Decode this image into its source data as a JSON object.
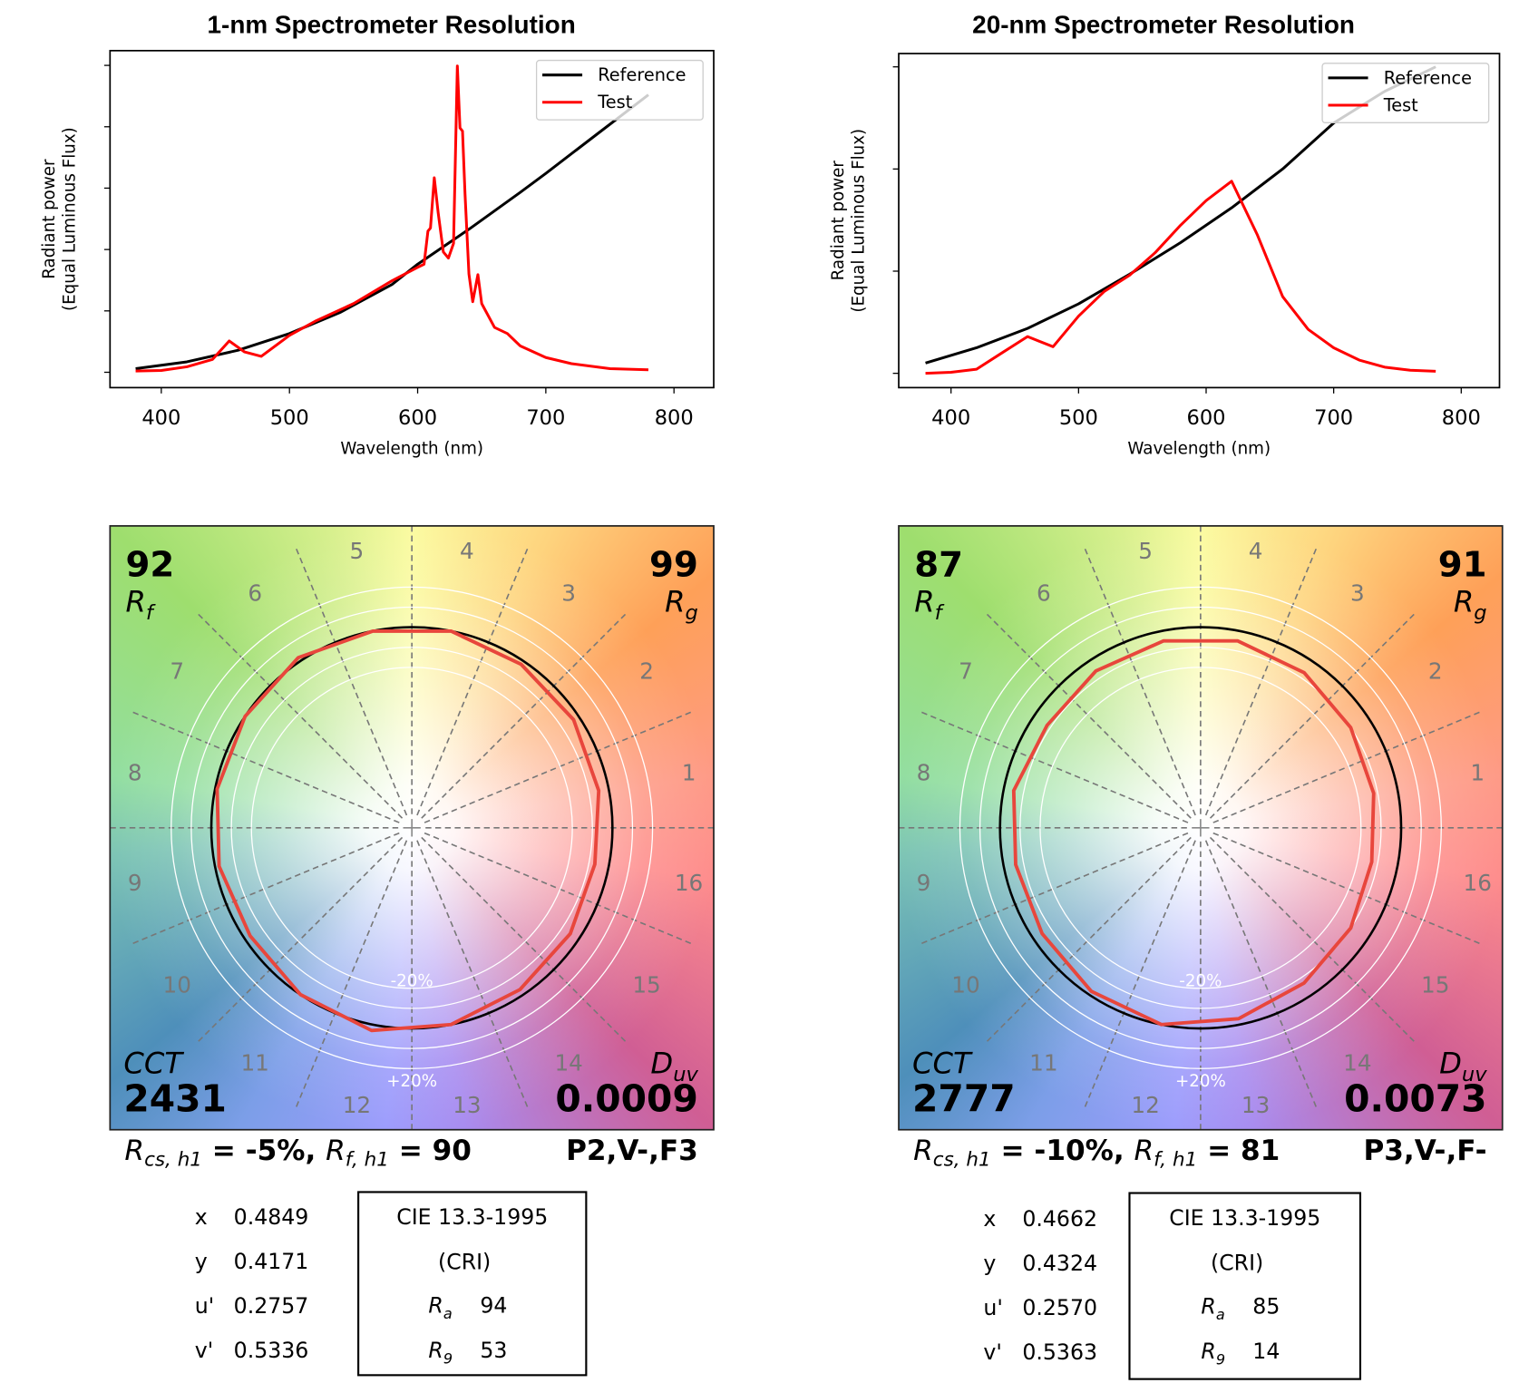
{
  "panels": [
    {
      "title": "1-nm Spectrometer Resolution",
      "ylabel_line1": "Radiant power",
      "ylabel_line2": "(Equal Luminous Flux)",
      "xlabel": "Wavelength (nm)",
      "legend": [
        "Reference",
        "Test"
      ],
      "xticks": [
        "400",
        "500",
        "600",
        "700",
        "800"
      ],
      "Rf": "92",
      "Rf_label": "R",
      "Rf_sub": "f",
      "Rg": "99",
      "Rg_label": "R",
      "Rg_sub": "g",
      "CCT_label": "CCT",
      "CCT": "2431",
      "Duv_label": "D",
      "Duv_sub": "uv",
      "Duv": "0.0009",
      "bins": [
        "1",
        "2",
        "3",
        "4",
        "5",
        "6",
        "7",
        "8",
        "9",
        "10",
        "11",
        "12",
        "13",
        "14",
        "15",
        "16"
      ],
      "minus20": "-20%",
      "plus20": "+20%",
      "rcs_label": "R",
      "rcs_sub": "cs, h1",
      "rcs_text": " = -5%, ",
      "rfh1_label": "R",
      "rfh1_sub": "f, h1",
      "rfh1_text": " = 90",
      "class": "P2,V-,F3",
      "coords": [
        [
          "x",
          "0.4849"
        ],
        [
          "y",
          "0.4171"
        ],
        [
          "u'",
          "0.2757"
        ],
        [
          "v'",
          "0.5336"
        ]
      ],
      "cri_title": "CIE 13.3-1995",
      "cri_sub": "(CRI)",
      "Ra_label": "R",
      "Ra_sub": "a",
      "Ra": "94",
      "R9_label": "R",
      "R9_sub": "9",
      "R9": "53"
    },
    {
      "title": "20-nm Spectrometer Resolution",
      "ylabel_line1": "Radiant power",
      "ylabel_line2": "(Equal Luminous Flux)",
      "xlabel": "Wavelength (nm)",
      "legend": [
        "Reference",
        "Test"
      ],
      "xticks": [
        "400",
        "500",
        "600",
        "700",
        "800"
      ],
      "Rf": "87",
      "Rf_label": "R",
      "Rf_sub": "f",
      "Rg": "91",
      "Rg_label": "R",
      "Rg_sub": "g",
      "CCT_label": "CCT",
      "CCT": "2777",
      "Duv_label": "D",
      "Duv_sub": "uv",
      "Duv": "0.0073",
      "bins": [
        "1",
        "2",
        "3",
        "4",
        "5",
        "6",
        "7",
        "8",
        "9",
        "10",
        "11",
        "12",
        "13",
        "14",
        "15",
        "16"
      ],
      "minus20": "-20%",
      "plus20": "+20%",
      "rcs_label": "R",
      "rcs_sub": "cs, h1",
      "rcs_text": " = -10%, ",
      "rfh1_label": "R",
      "rfh1_sub": "f, h1",
      "rfh1_text": " = 81",
      "class": "P3,V-,F-",
      "coords": [
        [
          "x",
          "0.4662"
        ],
        [
          "y",
          "0.4324"
        ],
        [
          "u'",
          "0.2570"
        ],
        [
          "v'",
          "0.5363"
        ]
      ],
      "cri_title": "CIE 13.3-1995",
      "cri_sub": "(CRI)",
      "Ra_label": "R",
      "Ra_sub": "a",
      "Ra": "85",
      "R9_label": "R",
      "R9_sub": "9",
      "R9": "14"
    }
  ],
  "chart_data": [
    {
      "type": "line",
      "title": "1-nm Spectrometer Resolution",
      "xlabel": "Wavelength (nm)",
      "ylabel": "Radiant power (Equal Luminous Flux)",
      "xlim": [
        360,
        831
      ],
      "ylim": [
        -0.25,
        5.24
      ],
      "xticks": [
        400,
        500,
        600,
        700,
        800
      ],
      "yticks": [
        0,
        1,
        2,
        3,
        4,
        5
      ],
      "ytick_labels_shown": false,
      "legend": "top-right",
      "grid": false,
      "colors": {
        "Reference": "#000000",
        "Test": "#ff0000"
      },
      "series": [
        {
          "name": "Reference",
          "x": [
            380,
            420,
            460,
            500,
            540,
            580,
            600,
            640,
            680,
            700,
            740,
            780
          ],
          "y": [
            0.06,
            0.17,
            0.36,
            0.63,
            0.98,
            1.43,
            1.76,
            2.33,
            2.93,
            3.24,
            3.88,
            4.52
          ]
        },
        {
          "name": "Test",
          "x": [
            380,
            400,
            420,
            440,
            453,
            465,
            478,
            500,
            520,
            550,
            580,
            600,
            605,
            608,
            610,
            613,
            616,
            620,
            624,
            628,
            631,
            633,
            635,
            637,
            640,
            643,
            647,
            650,
            660,
            670,
            680,
            700,
            720,
            750,
            780
          ],
          "y": [
            0.02,
            0.03,
            0.09,
            0.21,
            0.51,
            0.33,
            0.26,
            0.6,
            0.83,
            1.12,
            1.49,
            1.71,
            1.76,
            2.3,
            2.35,
            3.17,
            2.6,
            1.96,
            1.86,
            2.1,
            4.99,
            3.98,
            3.93,
            2.9,
            1.6,
            1.15,
            1.59,
            1.12,
            0.73,
            0.63,
            0.43,
            0.24,
            0.14,
            0.06,
            0.04
          ]
        }
      ]
    },
    {
      "type": "line",
      "title": "20-nm Spectrometer Resolution",
      "xlabel": "Wavelength (nm)",
      "ylabel": "Radiant power (Equal Luminous Flux)",
      "xlim": [
        359,
        830
      ],
      "ylim": [
        -0.14,
        3.13
      ],
      "xticks": [
        400,
        500,
        600,
        700,
        800
      ],
      "yticks": [
        0,
        1,
        2,
        3
      ],
      "ytick_labels_shown": false,
      "legend": "top-right",
      "grid": false,
      "colors": {
        "Reference": "#000000",
        "Test": "#ff0000"
      },
      "series": [
        {
          "name": "Reference",
          "x": [
            380,
            420,
            460,
            500,
            540,
            580,
            620,
            660,
            700,
            740,
            780
          ],
          "y": [
            0.1,
            0.25,
            0.44,
            0.68,
            0.97,
            1.28,
            1.62,
            2.0,
            2.45,
            2.76,
            3.0
          ]
        },
        {
          "name": "Test",
          "x": [
            380,
            400,
            420,
            440,
            460,
            480,
            500,
            520,
            540,
            560,
            580,
            600,
            620,
            640,
            660,
            680,
            700,
            720,
            740,
            760,
            780
          ],
          "y": [
            0.0,
            0.01,
            0.04,
            0.2,
            0.36,
            0.26,
            0.56,
            0.8,
            0.96,
            1.18,
            1.45,
            1.69,
            1.88,
            1.36,
            0.75,
            0.43,
            0.25,
            0.13,
            0.06,
            0.03,
            0.02
          ]
        }
      ]
    },
    {
      "type": "radar",
      "categories": [
        "1",
        "2",
        "3",
        "4",
        "5",
        "6",
        "7",
        "8",
        "9",
        "10",
        "11",
        "12",
        "13",
        "14",
        "15",
        "16"
      ],
      "reference_ratio": 1.0,
      "test_ratio": [
        0.95,
        0.97,
        0.98,
        1.0,
        1.0,
        1.02,
        1.0,
        0.99,
        0.98,
        0.97,
        1.0,
        1.03,
        1.0,
        0.97,
        0.95,
        0.93
      ],
      "rings": [
        0.8,
        0.9,
        1.0,
        1.1,
        1.2
      ],
      "colors": {
        "reference": "#000000",
        "test": "#e8463c"
      }
    },
    {
      "type": "radar",
      "categories": [
        "1",
        "2",
        "3",
        "4",
        "5",
        "6",
        "7",
        "8",
        "9",
        "10",
        "11",
        "12",
        "13",
        "14",
        "15",
        "16"
      ],
      "reference_ratio": 1.0,
      "test_ratio": [
        0.88,
        0.9,
        0.93,
        0.95,
        0.95,
        0.94,
        0.92,
        0.95,
        0.94,
        0.95,
        0.98,
        1.0,
        0.97,
        0.93,
        0.9,
        0.87
      ],
      "rings": [
        0.8,
        0.9,
        1.0,
        1.1,
        1.2
      ],
      "colors": {
        "reference": "#000000",
        "test": "#e8463c"
      }
    }
  ]
}
